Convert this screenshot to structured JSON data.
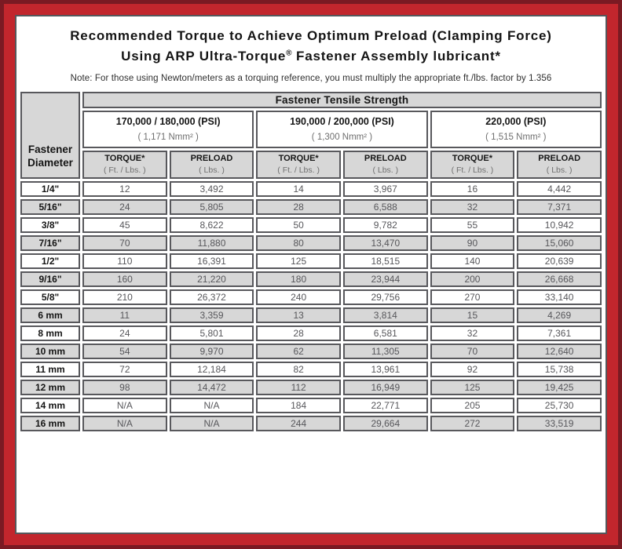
{
  "title": {
    "line1": "Recommended Torque to Achieve Optimum Preload (Clamping Force)",
    "line2_pre": "Using ARP Ultra-Torque",
    "line2_mark": "®",
    "line2_post": " Fastener Assembly lubricant*"
  },
  "note": "Note: For those using Newton/meters as a torquing reference, you must multiply the appropriate ft./lbs. factor by 1.356",
  "table": {
    "corner_header": "Fastener Diameter",
    "group_header": "Fastener Tensile Strength",
    "strength_columns": [
      {
        "psi": "170,000 / 180,000 (PSI)",
        "nmm": "( 1,171 Nmm² )"
      },
      {
        "psi": "190,000 / 200,000 (PSI)",
        "nmm": "( 1,300 Nmm² )"
      },
      {
        "psi": "220,000 (PSI)",
        "nmm": "( 1,515 Nmm² )"
      }
    ],
    "sub_headers": {
      "torque_label": "TORQUE*",
      "torque_unit": "( Ft. / Lbs. )",
      "preload_label": "PRELOAD",
      "preload_unit": "( Lbs. )"
    },
    "rows": [
      {
        "diameter": "1/4\"",
        "values": [
          "12",
          "3,492",
          "14",
          "3,967",
          "16",
          "4,442"
        ]
      },
      {
        "diameter": "5/16\"",
        "values": [
          "24",
          "5,805",
          "28",
          "6,588",
          "32",
          "7,371"
        ]
      },
      {
        "diameter": "3/8\"",
        "values": [
          "45",
          "8,622",
          "50",
          "9,782",
          "55",
          "10,942"
        ]
      },
      {
        "diameter": "7/16\"",
        "values": [
          "70",
          "11,880",
          "80",
          "13,470",
          "90",
          "15,060"
        ]
      },
      {
        "diameter": "1/2\"",
        "values": [
          "110",
          "16,391",
          "125",
          "18,515",
          "140",
          "20,639"
        ]
      },
      {
        "diameter": "9/16\"",
        "values": [
          "160",
          "21,220",
          "180",
          "23,944",
          "200",
          "26,668"
        ]
      },
      {
        "diameter": "5/8\"",
        "values": [
          "210",
          "26,372",
          "240",
          "29,756",
          "270",
          "33,140"
        ]
      },
      {
        "diameter": "6 mm",
        "values": [
          "11",
          "3,359",
          "13",
          "3,814",
          "15",
          "4,269"
        ]
      },
      {
        "diameter": "8 mm",
        "values": [
          "24",
          "5,801",
          "28",
          "6,581",
          "32",
          "7,361"
        ]
      },
      {
        "diameter": "10 mm",
        "values": [
          "54",
          "9,970",
          "62",
          "11,305",
          "70",
          "12,640"
        ]
      },
      {
        "diameter": "11 mm",
        "values": [
          "72",
          "12,184",
          "82",
          "13,961",
          "92",
          "15,738"
        ]
      },
      {
        "diameter": "12 mm",
        "values": [
          "98",
          "14,472",
          "112",
          "16,949",
          "125",
          "19,425"
        ]
      },
      {
        "diameter": "14 mm",
        "values": [
          "N/A",
          "N/A",
          "184",
          "22,771",
          "205",
          "25,730"
        ]
      },
      {
        "diameter": "16 mm",
        "values": [
          "N/A",
          "N/A",
          "244",
          "29,664",
          "272",
          "33,519"
        ]
      }
    ]
  },
  "colors": {
    "outer-maroon": "#7a1a23",
    "frame-red": "#c2262d",
    "gray-cell": "#d7d7d7",
    "cell-border": "#58585c"
  }
}
